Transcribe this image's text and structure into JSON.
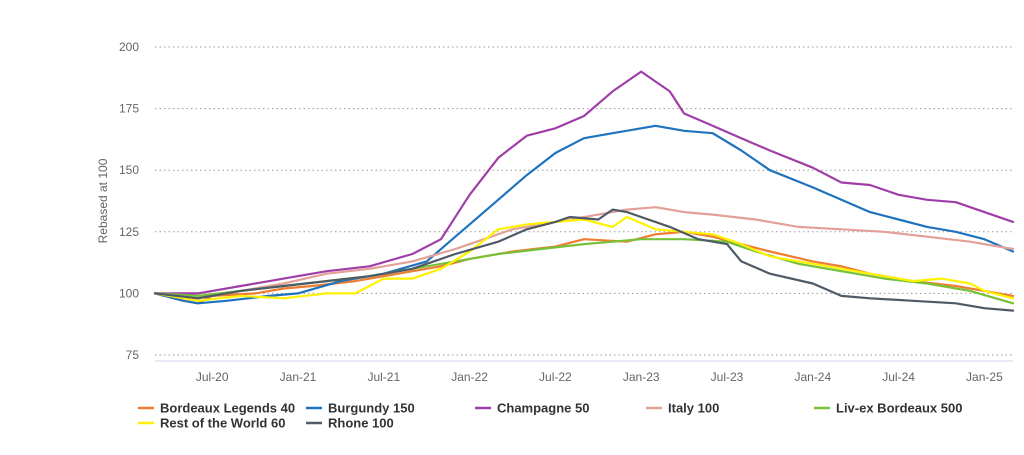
{
  "chart_data": {
    "type": "line",
    "ylabel": "Rebased at 100",
    "ylim": [
      75,
      200
    ],
    "yticks": [
      75,
      100,
      125,
      150,
      175,
      200
    ],
    "x_start": "2020-03",
    "x_end": "2025-03",
    "xticks": [
      {
        "date": "2020-07",
        "label": "Jul-20"
      },
      {
        "date": "2021-01",
        "label": "Jan-21"
      },
      {
        "date": "2021-07",
        "label": "Jul-21"
      },
      {
        "date": "2022-01",
        "label": "Jan-22"
      },
      {
        "date": "2022-07",
        "label": "Jul-22"
      },
      {
        "date": "2023-01",
        "label": "Jan-23"
      },
      {
        "date": "2023-07",
        "label": "Jul-23"
      },
      {
        "date": "2024-01",
        "label": "Jan-24"
      },
      {
        "date": "2024-07",
        "label": "Jul-24"
      },
      {
        "date": "2025-01",
        "label": "Jan-25"
      }
    ],
    "grid": "horizontal dotted",
    "legend": "bottom",
    "series": [
      {
        "name": "Bordeaux Legends 40",
        "color": "#ed7d31",
        "points": [
          [
            "2020-03",
            100
          ],
          [
            "2020-05",
            97
          ],
          [
            "2020-06",
            96
          ],
          [
            "2020-07",
            99
          ],
          [
            "2020-10",
            100
          ],
          [
            "2020-12",
            102
          ],
          [
            "2021-02",
            103
          ],
          [
            "2021-05",
            105
          ],
          [
            "2021-08",
            108
          ],
          [
            "2021-11",
            111
          ],
          [
            "2022-01",
            114
          ],
          [
            "2022-04",
            117
          ],
          [
            "2022-07",
            119
          ],
          [
            "2022-09",
            122
          ],
          [
            "2022-12",
            121
          ],
          [
            "2023-02",
            124
          ],
          [
            "2023-04",
            125
          ],
          [
            "2023-06",
            123
          ],
          [
            "2023-08",
            120
          ],
          [
            "2023-10",
            117
          ],
          [
            "2024-01",
            113
          ],
          [
            "2024-03",
            111
          ],
          [
            "2024-05",
            108
          ],
          [
            "2024-08",
            105
          ],
          [
            "2024-11",
            103
          ],
          [
            "2025-01",
            101
          ],
          [
            "2025-03",
            99
          ]
        ]
      },
      {
        "name": "Burgundy 150",
        "color": "#1f73be",
        "points": [
          [
            "2020-03",
            100
          ],
          [
            "2020-05",
            97
          ],
          [
            "2020-06",
            96
          ],
          [
            "2020-08",
            97
          ],
          [
            "2020-11",
            99
          ],
          [
            "2021-01",
            100
          ],
          [
            "2021-04",
            105
          ],
          [
            "2021-07",
            108
          ],
          [
            "2021-10",
            113
          ],
          [
            "2021-12",
            123
          ],
          [
            "2022-01",
            128
          ],
          [
            "2022-03",
            138
          ],
          [
            "2022-05",
            148
          ],
          [
            "2022-07",
            157
          ],
          [
            "2022-09",
            163
          ],
          [
            "2022-11",
            165
          ],
          [
            "2023-01",
            167
          ],
          [
            "2023-02",
            168
          ],
          [
            "2023-04",
            166
          ],
          [
            "2023-06",
            165
          ],
          [
            "2023-08",
            158
          ],
          [
            "2023-10",
            150
          ],
          [
            "2024-01",
            143
          ],
          [
            "2024-03",
            138
          ],
          [
            "2024-05",
            133
          ],
          [
            "2024-07",
            130
          ],
          [
            "2024-09",
            127
          ],
          [
            "2024-11",
            125
          ],
          [
            "2025-01",
            122
          ],
          [
            "2025-03",
            117
          ]
        ]
      },
      {
        "name": "Champagne 50",
        "color": "#a03ea8",
        "points": [
          [
            "2020-03",
            100
          ],
          [
            "2020-06",
            100
          ],
          [
            "2020-09",
            103
          ],
          [
            "2020-12",
            106
          ],
          [
            "2021-03",
            109
          ],
          [
            "2021-06",
            111
          ],
          [
            "2021-09",
            116
          ],
          [
            "2021-11",
            122
          ],
          [
            "2022-01",
            140
          ],
          [
            "2022-03",
            155
          ],
          [
            "2022-05",
            164
          ],
          [
            "2022-07",
            167
          ],
          [
            "2022-09",
            172
          ],
          [
            "2022-11",
            182
          ],
          [
            "2023-01",
            190
          ],
          [
            "2023-03",
            182
          ],
          [
            "2023-04",
            173
          ],
          [
            "2023-06",
            168
          ],
          [
            "2023-08",
            163
          ],
          [
            "2023-10",
            158
          ],
          [
            "2024-01",
            151
          ],
          [
            "2024-03",
            145
          ],
          [
            "2024-05",
            144
          ],
          [
            "2024-07",
            140
          ],
          [
            "2024-09",
            138
          ],
          [
            "2024-11",
            137
          ],
          [
            "2025-01",
            133
          ],
          [
            "2025-03",
            129
          ]
        ]
      },
      {
        "name": "Italy 100",
        "color": "#e3a098",
        "points": [
          [
            "2020-03",
            100
          ],
          [
            "2020-06",
            98
          ],
          [
            "2020-09",
            101
          ],
          [
            "2020-12",
            104
          ],
          [
            "2021-03",
            108
          ],
          [
            "2021-06",
            110
          ],
          [
            "2021-09",
            113
          ],
          [
            "2021-12",
            118
          ],
          [
            "2022-02",
            122
          ],
          [
            "2022-04",
            126
          ],
          [
            "2022-07",
            129
          ],
          [
            "2022-10",
            132
          ],
          [
            "2022-12",
            134
          ],
          [
            "2023-02",
            135
          ],
          [
            "2023-04",
            133
          ],
          [
            "2023-06",
            132
          ],
          [
            "2023-09",
            130
          ],
          [
            "2023-12",
            127
          ],
          [
            "2024-03",
            126
          ],
          [
            "2024-06",
            125
          ],
          [
            "2024-09",
            123
          ],
          [
            "2024-12",
            121
          ],
          [
            "2025-03",
            118
          ]
        ]
      },
      {
        "name": "Liv-ex Bordeaux 500",
        "color": "#77c13a",
        "points": [
          [
            "2020-03",
            100
          ],
          [
            "2020-06",
            99
          ],
          [
            "2020-09",
            101
          ],
          [
            "2020-12",
            103
          ],
          [
            "2021-03",
            105
          ],
          [
            "2021-06",
            107
          ],
          [
            "2021-09",
            110
          ],
          [
            "2021-12",
            113
          ],
          [
            "2022-03",
            116
          ],
          [
            "2022-06",
            118
          ],
          [
            "2022-09",
            120
          ],
          [
            "2022-11",
            121
          ],
          [
            "2023-01",
            122
          ],
          [
            "2023-04",
            122
          ],
          [
            "2023-07",
            121
          ],
          [
            "2023-09",
            117
          ],
          [
            "2023-12",
            112
          ],
          [
            "2024-03",
            109
          ],
          [
            "2024-06",
            106
          ],
          [
            "2024-09",
            104
          ],
          [
            "2024-12",
            101
          ],
          [
            "2025-03",
            96
          ]
        ]
      },
      {
        "name": "Rest of the World 60",
        "color": "#fff200",
        "points": [
          [
            "2020-03",
            100
          ],
          [
            "2020-06",
            97
          ],
          [
            "2020-09",
            99
          ],
          [
            "2020-12",
            98
          ],
          [
            "2021-03",
            100
          ],
          [
            "2021-05",
            100
          ],
          [
            "2021-07",
            106
          ],
          [
            "2021-09",
            106
          ],
          [
            "2021-11",
            110
          ],
          [
            "2022-01",
            117
          ],
          [
            "2022-03",
            126
          ],
          [
            "2022-05",
            128
          ],
          [
            "2022-07",
            129
          ],
          [
            "2022-09",
            130
          ],
          [
            "2022-11",
            127
          ],
          [
            "2022-12",
            131
          ],
          [
            "2023-02",
            126
          ],
          [
            "2023-04",
            125
          ],
          [
            "2023-06",
            124
          ],
          [
            "2023-08",
            120
          ],
          [
            "2023-10",
            115
          ],
          [
            "2024-01",
            112
          ],
          [
            "2024-04",
            109
          ],
          [
            "2024-06",
            107
          ],
          [
            "2024-08",
            105
          ],
          [
            "2024-10",
            106
          ],
          [
            "2024-12",
            104
          ],
          [
            "2025-01",
            101
          ],
          [
            "2025-03",
            98
          ]
        ]
      },
      {
        "name": "Rhone 100",
        "color": "#4e5a66",
        "points": [
          [
            "2020-03",
            100
          ],
          [
            "2020-06",
            98
          ],
          [
            "2020-09",
            101
          ],
          [
            "2020-12",
            103
          ],
          [
            "2021-03",
            105
          ],
          [
            "2021-06",
            107
          ],
          [
            "2021-09",
            110
          ],
          [
            "2021-12",
            116
          ],
          [
            "2022-03",
            121
          ],
          [
            "2022-05",
            126
          ],
          [
            "2022-07",
            129
          ],
          [
            "2022-08",
            131
          ],
          [
            "2022-10",
            130
          ],
          [
            "2022-11",
            134
          ],
          [
            "2022-12",
            133
          ],
          [
            "2023-03",
            127
          ],
          [
            "2023-05",
            122
          ],
          [
            "2023-07",
            120
          ],
          [
            "2023-08",
            113
          ],
          [
            "2023-10",
            108
          ],
          [
            "2024-01",
            104
          ],
          [
            "2024-03",
            99
          ],
          [
            "2024-05",
            98
          ],
          [
            "2024-08",
            97
          ],
          [
            "2024-11",
            96
          ],
          [
            "2025-01",
            94
          ],
          [
            "2025-03",
            93
          ]
        ]
      }
    ]
  }
}
